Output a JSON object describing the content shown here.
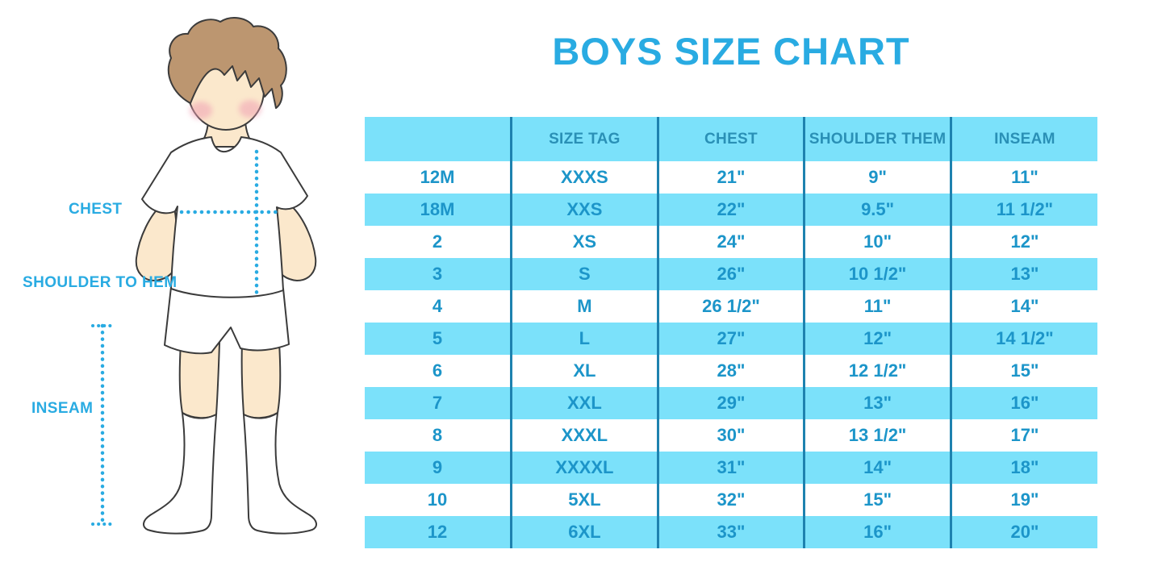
{
  "title": "BOYS SIZE CHART",
  "colors": {
    "accent_blue": "#29ABE2",
    "row_blue": "#7BE1FA",
    "divider_blue": "#1E82AF",
    "cell_text": "#1C95C9",
    "header_text": "#2A90B6",
    "skin": "#FBE8CC",
    "hair": "#BC9670",
    "cheek": "#F0A0B4",
    "outline": "#3b3b3b"
  },
  "diagram": {
    "labels": {
      "chest": "CHEST",
      "shoulder_to_hem": "SHOULDER TO HEM",
      "inseam": "INSEAM"
    }
  },
  "chart_data": {
    "type": "table",
    "title": "BOYS SIZE CHART",
    "units": "inches",
    "columns": [
      "",
      "SIZE TAG",
      "CHEST",
      "SHOULDER THEM",
      "INSEAM"
    ],
    "rows": [
      [
        "12M",
        "XXXS",
        "21\"",
        "9\"",
        "11\""
      ],
      [
        "18M",
        "XXS",
        "22\"",
        "9.5\"",
        "11 1/2\""
      ],
      [
        "2",
        "XS",
        "24\"",
        "10\"",
        "12\""
      ],
      [
        "3",
        "S",
        "26\"",
        "10 1/2\"",
        "13\""
      ],
      [
        "4",
        "M",
        "26 1/2\"",
        "11\"",
        "14\""
      ],
      [
        "5",
        "L",
        "27\"",
        "12\"",
        "14 1/2\""
      ],
      [
        "6",
        "XL",
        "28\"",
        "12 1/2\"",
        "15\""
      ],
      [
        "7",
        "XXL",
        "29\"",
        "13\"",
        "16\""
      ],
      [
        "8",
        "XXXL",
        "30\"",
        "13 1/2\"",
        "17\""
      ],
      [
        "9",
        "XXXXL",
        "31\"",
        "14\"",
        "18\""
      ],
      [
        "10",
        "5XL",
        "32\"",
        "15\"",
        "19\""
      ],
      [
        "12",
        "6XL",
        "33\"",
        "16\"",
        "20\""
      ]
    ]
  }
}
